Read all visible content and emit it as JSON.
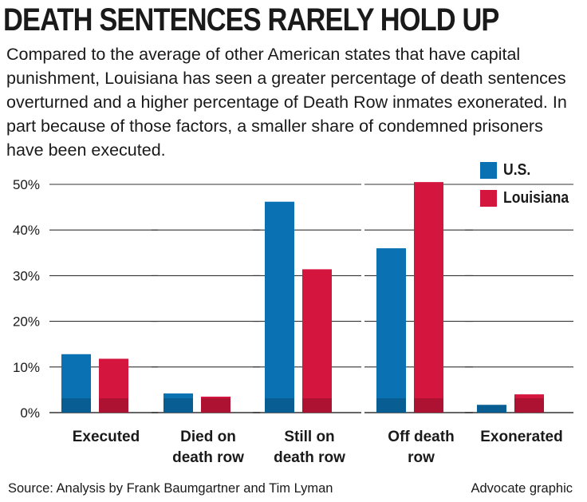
{
  "title": "DEATH SENTENCES RARELY HOLD UP",
  "subtitle": "Compared to the average of other American states that have capital punishment, Louisiana has seen a greater percentage of death sentences overturned and a higher percentage of Death Row inmates exonerated. In part because of those factors, a smaller share of condemned prisoners have been executed.",
  "source": "Source: Analysis by Frank Baumgartner and Tim Lyman",
  "credit": "Advocate graphic",
  "colors": {
    "us": "#0a72b3",
    "louisiana": "#d4163f",
    "grid": "#333333",
    "text": "#1a1a1a"
  },
  "chart_data": {
    "type": "bar",
    "title": "DEATH SENTENCES RARELY HOLD UP",
    "categories": [
      [
        "Executed"
      ],
      [
        "Died on",
        "death row"
      ],
      [
        "Still on",
        "death row"
      ],
      [
        "Off death",
        "row"
      ],
      [
        "Exonerated"
      ]
    ],
    "series": [
      {
        "name": "U.S.",
        "color": "#0a72b3",
        "values": [
          12.8,
          4.2,
          46.2,
          36.0,
          1.7
        ]
      },
      {
        "name": "Louisiana",
        "color": "#d4163f",
        "values": [
          11.8,
          3.5,
          31.4,
          50.5,
          4.0
        ]
      }
    ],
    "yticks": [
      0,
      10,
      20,
      30,
      40,
      50
    ],
    "ytick_labels": [
      "0%",
      "10%",
      "20%",
      "30%",
      "40%",
      "50%"
    ],
    "ylim": [
      0,
      50
    ],
    "legend_position": "top-right",
    "xlabel": "",
    "ylabel": ""
  }
}
